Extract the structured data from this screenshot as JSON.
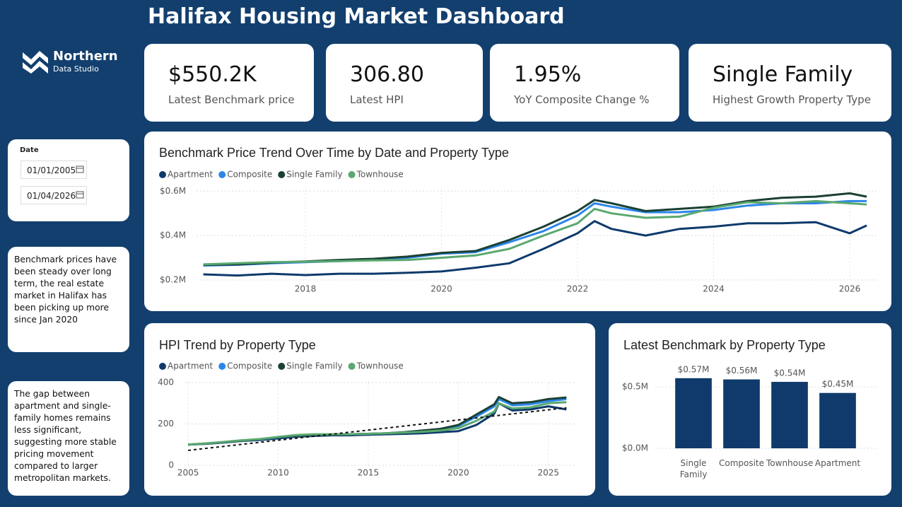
{
  "header": {
    "title": "Halifax Housing Market Dashboard"
  },
  "logo": {
    "name": "Northern",
    "subtitle": "Data Studio"
  },
  "kpis": [
    {
      "value": "$550.2K",
      "label": "Latest Benchmark price"
    },
    {
      "value": "306.80",
      "label": "Latest HPI"
    },
    {
      "value": "1.95%",
      "label": "YoY Composite Change %"
    },
    {
      "value": "Single Family",
      "label": "Highest Growth Property Type"
    }
  ],
  "filter": {
    "label": "Date",
    "start": "01/01/2005",
    "end": "01/04/2026"
  },
  "notes": [
    "Benchmark prices have been steady over long term, the real estate market in Halifax has been picking up more since Jan 2020",
    "The gap between apartment and single-family homes remains less significant, suggesting more stable pricing movement compared to larger metropolitan markets."
  ],
  "chart_data": [
    {
      "type": "line",
      "title": "Benchmark Price Trend Over Time by Date and Property Type",
      "x": [
        2016.5,
        2017,
        2017.5,
        2018,
        2018.5,
        2019,
        2019.5,
        2020,
        2020.5,
        2021,
        2021.5,
        2022,
        2022.25,
        2022.5,
        2023,
        2023.5,
        2024,
        2024.5,
        2025,
        2025.5,
        2026,
        2026.25
      ],
      "series": [
        {
          "name": "Apartment",
          "color": "#0e3a6b",
          "values": [
            225000,
            220000,
            228000,
            222000,
            228000,
            228000,
            232000,
            238000,
            255000,
            275000,
            340000,
            410000,
            465000,
            430000,
            400000,
            430000,
            440000,
            455000,
            455000,
            460000,
            410000,
            445000
          ]
        },
        {
          "name": "Composite",
          "color": "#2b86e8",
          "values": [
            265000,
            268000,
            275000,
            280000,
            285000,
            290000,
            300000,
            318000,
            325000,
            370000,
            420000,
            490000,
            545000,
            530000,
            505000,
            505000,
            515000,
            535000,
            545000,
            545000,
            555000,
            555000
          ]
        },
        {
          "name": "Single Family",
          "color": "#1b4033",
          "values": [
            268000,
            270000,
            278000,
            283000,
            290000,
            295000,
            305000,
            322000,
            330000,
            380000,
            440000,
            510000,
            560000,
            545000,
            510000,
            520000,
            530000,
            555000,
            570000,
            575000,
            590000,
            575000
          ]
        },
        {
          "name": "Townhouse",
          "color": "#5aa86f",
          "values": [
            270000,
            275000,
            280000,
            282000,
            285000,
            288000,
            290000,
            300000,
            310000,
            340000,
            400000,
            455000,
            520000,
            500000,
            480000,
            485000,
            525000,
            550000,
            545000,
            555000,
            545000,
            540000
          ]
        }
      ],
      "xlim": [
        2016.4,
        2026.4
      ],
      "xticks": [
        2018,
        2020,
        2022,
        2024,
        2026
      ],
      "ylim": [
        190000,
        620000
      ],
      "yticks": [
        {
          "value": 200000,
          "label": "$0.2M"
        },
        {
          "value": 400000,
          "label": "$0.4M"
        },
        {
          "value": 600000,
          "label": "$0.6M"
        }
      ],
      "grid": true,
      "legend": "top-left"
    },
    {
      "type": "line",
      "title": "HPI Trend by Property Type",
      "x": [
        2005,
        2006,
        2007,
        2008,
        2009,
        2010,
        2011,
        2012,
        2013,
        2014,
        2015,
        2016,
        2017,
        2018,
        2019,
        2020,
        2021,
        2022,
        2022.25,
        2023,
        2024,
        2025,
        2026
      ],
      "series": [
        {
          "name": "Apartment",
          "color": "#0e3a6b",
          "values": [
            100,
            104,
            110,
            118,
            122,
            130,
            138,
            142,
            145,
            145,
            148,
            150,
            152,
            155,
            160,
            165,
            195,
            250,
            300,
            265,
            270,
            285,
            270
          ]
        },
        {
          "name": "Composite",
          "color": "#2b86e8",
          "values": [
            100,
            105,
            112,
            120,
            125,
            135,
            142,
            145,
            148,
            150,
            152,
            155,
            160,
            168,
            175,
            190,
            235,
            285,
            320,
            290,
            295,
            310,
            320
          ]
        },
        {
          "name": "Single Family",
          "color": "#1b4033",
          "values": [
            100,
            105,
            112,
            120,
            126,
            136,
            143,
            146,
            148,
            150,
            152,
            155,
            160,
            168,
            176,
            195,
            245,
            295,
            330,
            300,
            305,
            320,
            328
          ]
        },
        {
          "name": "Townhouse",
          "color": "#5aa86f",
          "values": [
            100,
            106,
            113,
            121,
            127,
            137,
            146,
            150,
            150,
            150,
            152,
            155,
            158,
            162,
            168,
            180,
            215,
            260,
            300,
            275,
            280,
            300,
            305
          ]
        }
      ],
      "trendline": {
        "x": [
          2005,
          2026
        ],
        "values": [
          72,
          278
        ]
      },
      "xlim": [
        2004.8,
        2026.5
      ],
      "xticks": [
        2005,
        2010,
        2015,
        2020,
        2025
      ],
      "ylim": [
        0,
        400
      ],
      "yticks": [
        0,
        200,
        400
      ],
      "grid": true,
      "legend": "top-left"
    },
    {
      "type": "bar",
      "title": "Latest Benchmark by Property Type",
      "categories": [
        "Single Family",
        "Composite",
        "Townhouse",
        "Apartment"
      ],
      "values": [
        570000,
        560000,
        540000,
        450000
      ],
      "value_labels": [
        "$0.57M",
        "$0.56M",
        "$0.54M",
        "$0.45M"
      ],
      "color": "#0f3a6b",
      "ylim": [
        0,
        600000
      ],
      "yticks": [
        {
          "value": 0,
          "label": "$0.0M"
        },
        {
          "value": 500000,
          "label": "$0.5M"
        }
      ],
      "grid": true
    }
  ]
}
